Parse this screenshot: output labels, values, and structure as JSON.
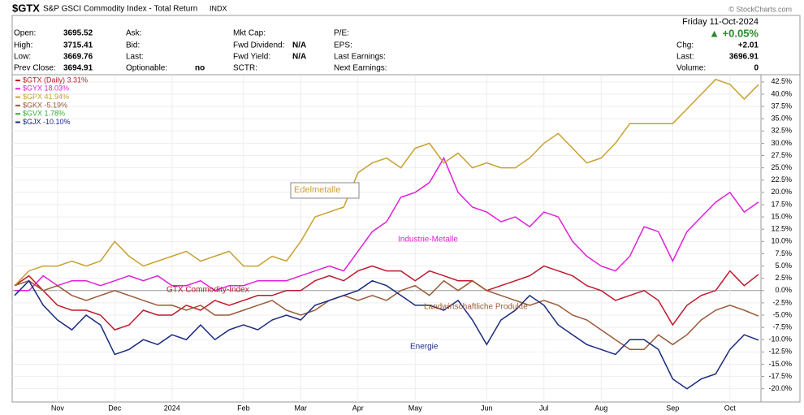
{
  "header": {
    "symbol": "$GTX",
    "name": "S&P GSCI Commodity Index - Total Return",
    "exchange": "INDX",
    "date": "Friday 11-Oct-2024",
    "change_pct": "▲ +0.05%",
    "watermark": "© StockCharts.com",
    "columns": [
      [
        {
          "label": "Open:",
          "value": "3695.52"
        },
        {
          "label": "High:",
          "value": "3715.41"
        },
        {
          "label": "Low:",
          "value": "3669.76"
        },
        {
          "label": "Prev Close:",
          "value": "3694.91"
        }
      ],
      [
        {
          "label": "Ask:"
        },
        {
          "label": "Bid:"
        },
        {
          "label": "Last:"
        },
        {
          "label": "Optionable:",
          "value": "no"
        }
      ],
      [
        {
          "label": "Mkt Cap:"
        },
        {
          "label": "Fwd Dividend:",
          "value": "N/A"
        },
        {
          "label": "Fwd Yield:",
          "value": "N/A"
        },
        {
          "label": "SCTR:"
        }
      ],
      [
        {
          "label": "P/E:"
        },
        {
          "label": "EPS:"
        },
        {
          "label": "Last Earnings:"
        },
        {
          "label": "Next Earnings:"
        }
      ]
    ],
    "right": [
      {
        "label": "Chg:",
        "value": "+2.01"
      },
      {
        "label": "Last:",
        "value": "3696.91"
      },
      {
        "label": "Volume:",
        "value": "0"
      }
    ]
  },
  "chart_data": {
    "type": "line",
    "categories": [
      null,
      null,
      null,
      "Nov",
      null,
      null,
      null,
      "Dec",
      null,
      null,
      null,
      "2024",
      null,
      null,
      null,
      null,
      "Feb",
      null,
      null,
      null,
      "Mar",
      null,
      null,
      null,
      "Apr",
      null,
      null,
      null,
      "May",
      null,
      null,
      null,
      null,
      "Jun",
      null,
      null,
      null,
      "Jul",
      null,
      null,
      null,
      "Aug",
      null,
      null,
      null,
      null,
      "Sep",
      null,
      null,
      null,
      "Oct",
      null,
      null
    ],
    "ylim": [
      -22.7,
      43.8
    ],
    "yticks": [
      {
        "value": -20,
        "label": "-20.0%"
      },
      {
        "value": -17.5,
        "label": "-17.5%"
      },
      {
        "value": -15,
        "label": "-15.0%"
      },
      {
        "value": -12.5,
        "label": "-12.5%"
      },
      {
        "value": -10,
        "label": "-10.0%"
      },
      {
        "value": -7.5,
        "label": "-7.5%"
      },
      {
        "value": -5,
        "label": "-5.0%"
      },
      {
        "value": -2.5,
        "label": "-2.5%"
      },
      {
        "value": 0,
        "label": "0.0%"
      },
      {
        "value": 2.5,
        "label": "2.5%"
      },
      {
        "value": 5,
        "label": "5.0%"
      },
      {
        "value": 7.5,
        "label": "7.5%"
      },
      {
        "value": 10,
        "label": "10.0%"
      },
      {
        "value": 12.5,
        "label": "12.5%"
      },
      {
        "value": 15,
        "label": "15.0%"
      },
      {
        "value": 17.5,
        "label": "17.5%"
      },
      {
        "value": 20,
        "label": "20.0%"
      },
      {
        "value": 22.5,
        "label": "22.5%"
      },
      {
        "value": 25,
        "label": "25.0%"
      },
      {
        "value": 27.5,
        "label": "27.5%"
      },
      {
        "value": 30,
        "label": "30.0%"
      },
      {
        "value": 32.5,
        "label": "32.5%"
      },
      {
        "value": 35,
        "label": "35.0%"
      },
      {
        "value": 37.5,
        "label": "37.5%"
      },
      {
        "value": 40,
        "label": "40.0%"
      },
      {
        "value": 42.5,
        "label": "42.5%"
      }
    ],
    "grid": true,
    "legend": "top-left",
    "series": [
      {
        "name": "$GTX (Daily) 3.31%",
        "color": "#c0182c",
        "values": [
          1,
          3,
          0,
          -3,
          -4,
          -4,
          -5,
          -8,
          -7,
          -4,
          -5,
          -5,
          -3,
          -4,
          -2,
          -3,
          -2,
          -1,
          -1,
          0,
          0,
          2,
          3,
          2,
          4,
          5,
          4,
          4,
          2,
          4,
          3,
          2,
          2,
          0,
          1,
          2,
          3,
          5,
          4,
          3,
          1,
          0,
          -2,
          -1,
          0,
          -2,
          -7,
          -3,
          -1,
          0,
          4,
          1,
          3.31
        ]
      },
      {
        "name": "$GYX 18.03%",
        "color": "#e020d8",
        "values": [
          0,
          0,
          3,
          1,
          2,
          2,
          1,
          2,
          3,
          2,
          3,
          1,
          1,
          2,
          0,
          1,
          1,
          2,
          2,
          2,
          3,
          4,
          5,
          4,
          8,
          12,
          14,
          19,
          20,
          22,
          27,
          20,
          17,
          16,
          14,
          15,
          13,
          16,
          15,
          10,
          7,
          5,
          4,
          7,
          13,
          12,
          6,
          12,
          15,
          18,
          20,
          16,
          18.03
        ]
      },
      {
        "name": "$GPX 41.94%",
        "color": "#c9a030",
        "values": [
          1,
          4,
          5,
          5,
          6,
          5,
          6,
          10,
          7,
          5,
          6,
          7,
          8,
          6,
          7,
          8,
          5,
          5,
          7,
          6,
          10,
          15,
          16,
          17,
          24,
          26,
          27,
          25,
          29,
          30,
          26,
          28,
          25,
          26,
          25,
          25,
          27,
          30,
          32,
          29,
          26,
          27,
          30,
          34,
          34,
          34,
          34,
          37,
          40,
          43,
          42,
          39,
          41.94
        ]
      },
      {
        "name": "$GKX -5.19%",
        "color": "#9a5a38",
        "values": [
          1,
          2,
          0,
          1,
          -1,
          -2,
          -1,
          0,
          -1,
          -2,
          -3,
          -3,
          -4,
          -3,
          -5,
          -5,
          -4,
          -3,
          -2,
          -4,
          -5,
          -4,
          -2,
          -1,
          -2,
          -1,
          -2,
          0,
          1,
          -1,
          2,
          0,
          2,
          0,
          -1,
          -2,
          -3,
          -2,
          -3,
          -5,
          -6,
          -8,
          -10,
          -12,
          -12,
          -9,
          -11,
          -9,
          -6,
          -4,
          -3,
          -4,
          -5.19
        ]
      },
      {
        "name": "$GVX 1.78%",
        "color": "#30b030"
      },
      {
        "name": "$GJX -10.10%",
        "color": "#1a2a80",
        "values": [
          -1,
          2,
          -3,
          -6,
          -8,
          -5,
          -7,
          -13,
          -12,
          -10,
          -11,
          -9,
          -10,
          -7,
          -10,
          -8,
          -7,
          -8,
          -6,
          -5,
          -6,
          -3,
          -2,
          -1,
          0,
          2,
          1,
          -1,
          -3,
          -3,
          -4,
          -2,
          -6,
          -11,
          -6,
          -4,
          -1,
          -3,
          -7,
          -9,
          -11,
          -12,
          -13,
          -10,
          -10,
          -12,
          -18,
          -20,
          -18,
          -17,
          -12,
          -9,
          -10.1
        ]
      }
    ],
    "annotations": [
      "Edelmetalle",
      "Industrie-Metalle",
      "GTX Commodity-Index",
      "Landwirtschaftliche Produkte",
      "Energie"
    ]
  }
}
